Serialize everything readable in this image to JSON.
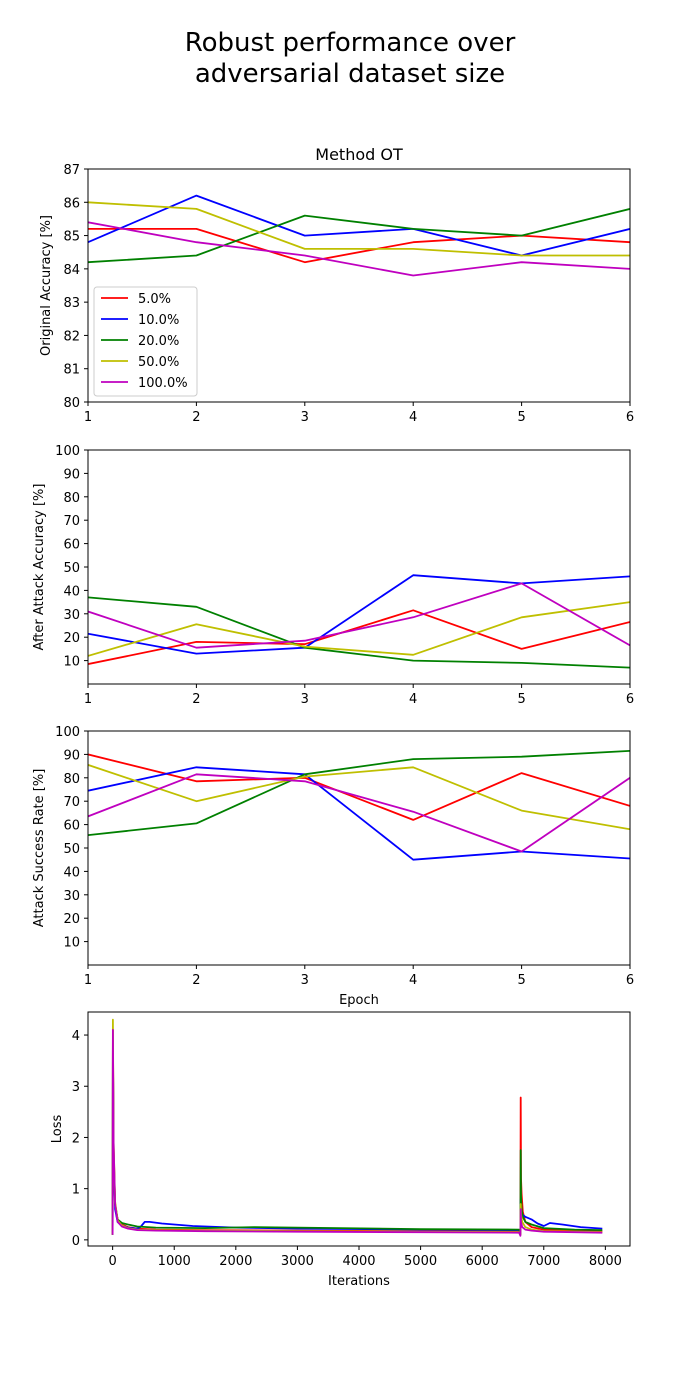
{
  "suptitle": [
    "Robust performance over",
    "adversarial dataset size"
  ],
  "chart_data": [
    {
      "type": "line",
      "title": "Method OT",
      "xlabel": "",
      "ylabel": "Original Accuracy [%]",
      "xlim": [
        1,
        6
      ],
      "ylim": [
        80,
        87
      ],
      "xticks": [
        1,
        2,
        3,
        4,
        5,
        6
      ],
      "yticks": [
        80,
        81,
        82,
        83,
        84,
        85,
        86,
        87
      ],
      "legend": "center-left",
      "x": [
        1,
        2,
        3,
        4,
        5,
        6
      ],
      "series": [
        {
          "name": "5.0%",
          "color": "#ff0000",
          "values": [
            85.2,
            85.2,
            84.2,
            84.8,
            85.0,
            84.8
          ]
        },
        {
          "name": "10.0%",
          "color": "#0000ff",
          "values": [
            84.8,
            86.2,
            85.0,
            85.2,
            84.4,
            85.2
          ]
        },
        {
          "name": "20.0%",
          "color": "#008000",
          "values": [
            84.2,
            84.4,
            85.6,
            85.2,
            85.0,
            85.8
          ]
        },
        {
          "name": "50.0%",
          "color": "#bfbf00",
          "values": [
            86.0,
            85.8,
            84.6,
            84.6,
            84.4,
            84.4
          ]
        },
        {
          "name": "100.0%",
          "color": "#bf00bf",
          "values": [
            85.4,
            84.8,
            84.4,
            83.8,
            84.2,
            84.0
          ]
        }
      ]
    },
    {
      "type": "line",
      "title": "",
      "xlabel": "",
      "ylabel": "After Attack Accuracy [%]",
      "xlim": [
        1,
        6
      ],
      "ylim": [
        0,
        100
      ],
      "xticks": [
        1,
        2,
        3,
        4,
        5,
        6
      ],
      "yticks": [
        10,
        20,
        30,
        40,
        50,
        60,
        70,
        80,
        90,
        100
      ],
      "x": [
        1,
        2,
        3,
        4,
        5,
        6
      ],
      "series": [
        {
          "color": "#ff0000",
          "values": [
            8.5,
            18.0,
            17.0,
            31.5,
            15.0,
            26.5
          ]
        },
        {
          "color": "#0000ff",
          "values": [
            21.5,
            13.0,
            15.5,
            46.5,
            43.0,
            46.0
          ]
        },
        {
          "color": "#008000",
          "values": [
            37.0,
            33.0,
            15.5,
            10.0,
            9.0,
            7.0
          ]
        },
        {
          "color": "#bfbf00",
          "values": [
            12.0,
            25.5,
            16.0,
            12.5,
            28.5,
            35.0
          ]
        },
        {
          "color": "#bf00bf",
          "values": [
            31.0,
            15.5,
            18.5,
            28.5,
            43.0,
            16.5
          ]
        }
      ]
    },
    {
      "type": "line",
      "title": "",
      "xlabel": "Epoch",
      "ylabel": "Attack Success Rate [%]",
      "xlim": [
        1,
        6
      ],
      "ylim": [
        0,
        100
      ],
      "xticks": [
        1,
        2,
        3,
        4,
        5,
        6
      ],
      "yticks": [
        10,
        20,
        30,
        40,
        50,
        60,
        70,
        80,
        90,
        100
      ],
      "x": [
        1,
        2,
        3,
        4,
        5,
        6
      ],
      "series": [
        {
          "color": "#ff0000",
          "values": [
            90.0,
            78.5,
            80.0,
            62.0,
            82.0,
            68.0
          ]
        },
        {
          "color": "#0000ff",
          "values": [
            74.5,
            84.5,
            81.5,
            45.0,
            48.5,
            45.5
          ]
        },
        {
          "color": "#008000",
          "values": [
            55.5,
            60.5,
            81.5,
            88.0,
            89.0,
            91.5
          ]
        },
        {
          "color": "#bfbf00",
          "values": [
            85.5,
            70.0,
            80.5,
            84.5,
            66.0,
            58.0
          ]
        },
        {
          "color": "#bf00bf",
          "values": [
            63.5,
            81.5,
            78.5,
            65.5,
            48.5,
            80.0
          ]
        }
      ]
    },
    {
      "type": "line",
      "title": "",
      "xlabel": "Iterations",
      "ylabel": "Loss",
      "xlim": [
        -400,
        8400
      ],
      "ylim": [
        -0.12,
        4.45
      ],
      "xticks": [
        0,
        1000,
        2000,
        3000,
        4000,
        5000,
        6000,
        7000,
        8000
      ],
      "yticks": [
        0,
        1,
        2,
        3,
        4
      ],
      "series": [
        {
          "color": "#ff0000",
          "x": [
            0,
            5,
            15,
            40,
            80,
            150,
            250,
            400,
            700,
            1500,
            3000,
            5000,
            6600,
            6620,
            6625,
            6630,
            6640,
            6660,
            6700,
            6800,
            7000,
            7500,
            7950
          ],
          "values": [
            0.1,
            4.1,
            1.8,
            0.7,
            0.4,
            0.3,
            0.25,
            0.22,
            0.2,
            0.19,
            0.18,
            0.17,
            0.16,
            0.1,
            2.78,
            1.2,
            0.9,
            0.55,
            0.35,
            0.25,
            0.2,
            0.18,
            0.17
          ]
        },
        {
          "color": "#0000ff",
          "x": [
            0,
            5,
            15,
            40,
            80,
            150,
            250,
            400,
            450,
            500,
            520,
            600,
            800,
            1300,
            2000,
            3000,
            5000,
            6600,
            6620,
            6625,
            6630,
            6650,
            6700,
            6800,
            6900,
            7000,
            7100,
            7300,
            7600,
            7950
          ],
          "values": [
            0.1,
            3.9,
            1.6,
            0.6,
            0.35,
            0.28,
            0.24,
            0.22,
            0.25,
            0.32,
            0.35,
            0.35,
            0.32,
            0.27,
            0.24,
            0.22,
            0.2,
            0.19,
            0.12,
            0.8,
            0.55,
            0.5,
            0.45,
            0.4,
            0.32,
            0.27,
            0.33,
            0.3,
            0.25,
            0.22
          ]
        },
        {
          "color": "#008000",
          "x": [
            0,
            5,
            15,
            40,
            80,
            150,
            250,
            400,
            700,
            1500,
            2300,
            3000,
            5000,
            6600,
            6620,
            6625,
            6630,
            6640,
            6660,
            6700,
            6800,
            7000,
            7500,
            7950
          ],
          "values": [
            0.1,
            3.8,
            1.7,
            0.7,
            0.4,
            0.33,
            0.3,
            0.26,
            0.24,
            0.23,
            0.25,
            0.24,
            0.21,
            0.2,
            0.12,
            1.75,
            0.85,
            0.6,
            0.45,
            0.35,
            0.3,
            0.23,
            0.2,
            0.19
          ]
        },
        {
          "color": "#bfbf00",
          "x": [
            0,
            5,
            15,
            40,
            80,
            150,
            250,
            400,
            700,
            1500,
            3000,
            5000,
            6600,
            6620,
            6625,
            6630,
            6650,
            6700,
            6800,
            7000,
            7500,
            7950
          ],
          "values": [
            0.1,
            4.3,
            1.9,
            0.75,
            0.38,
            0.28,
            0.23,
            0.2,
            0.19,
            0.18,
            0.17,
            0.16,
            0.15,
            0.1,
            0.7,
            0.5,
            0.35,
            0.25,
            0.2,
            0.17,
            0.16,
            0.15
          ]
        },
        {
          "color": "#bf00bf",
          "x": [
            0,
            5,
            15,
            40,
            80,
            150,
            250,
            400,
            700,
            1500,
            3000,
            5000,
            6600,
            6620,
            6625,
            6630,
            6650,
            6700,
            6800,
            7000,
            7500,
            7950
          ],
          "values": [
            0.1,
            4.1,
            1.9,
            0.7,
            0.35,
            0.26,
            0.22,
            0.19,
            0.18,
            0.17,
            0.16,
            0.15,
            0.14,
            0.08,
            0.6,
            0.35,
            0.25,
            0.2,
            0.18,
            0.16,
            0.15,
            0.14
          ]
        }
      ]
    }
  ]
}
